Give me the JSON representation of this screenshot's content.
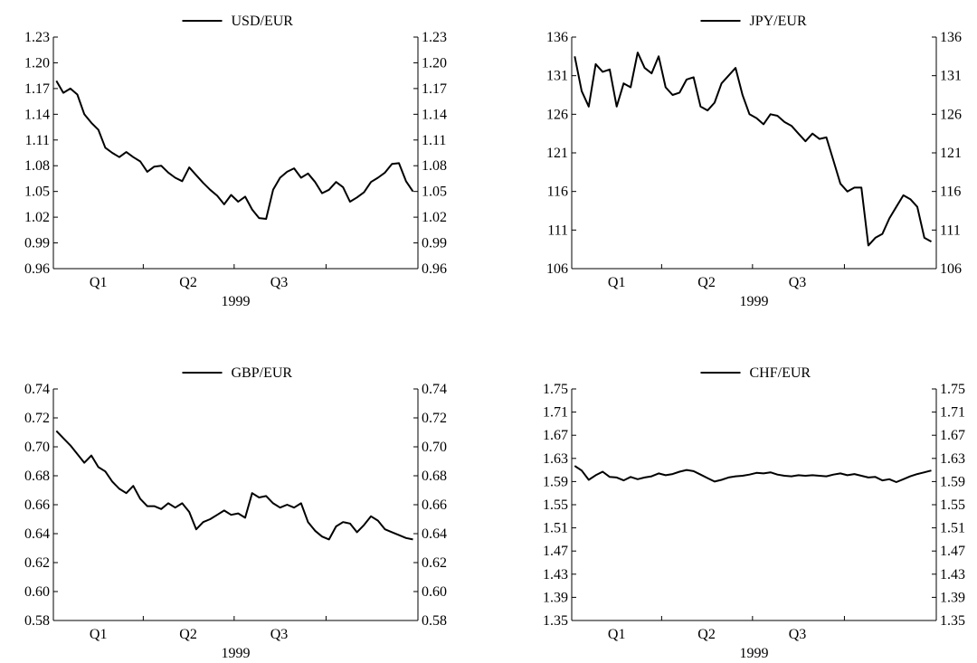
{
  "chart_data": [
    {
      "type": "line",
      "title": "",
      "series": [
        {
          "name": "USD/EUR",
          "color": "#000000",
          "x": [
            "1999-01-04",
            "1999-01-11",
            "1999-01-18",
            "1999-01-25",
            "1999-02-01",
            "1999-02-08",
            "1999-02-15",
            "1999-02-22",
            "1999-03-01",
            "1999-03-08",
            "1999-03-15",
            "1999-03-22",
            "1999-03-29",
            "1999-04-05",
            "1999-04-12",
            "1999-04-19",
            "1999-04-26",
            "1999-05-03",
            "1999-05-10",
            "1999-05-17",
            "1999-05-24",
            "1999-05-31",
            "1999-06-07",
            "1999-06-14",
            "1999-06-21",
            "1999-06-28",
            "1999-07-05",
            "1999-07-12",
            "1999-07-19",
            "1999-07-26",
            "1999-08-02",
            "1999-08-09",
            "1999-08-16",
            "1999-08-23",
            "1999-08-30",
            "1999-09-06",
            "1999-09-13",
            "1999-09-20",
            "1999-09-27",
            "1999-10-04",
            "1999-10-11",
            "1999-10-18",
            "1999-10-25",
            "1999-11-01",
            "1999-11-08",
            "1999-11-15",
            "1999-11-22",
            "1999-11-29",
            "1999-12-06",
            "1999-12-13",
            "1999-12-20",
            "1999-12-27"
          ],
          "values": [
            1.179,
            1.165,
            1.17,
            1.163,
            1.14,
            1.13,
            1.122,
            1.101,
            1.095,
            1.09,
            1.096,
            1.09,
            1.085,
            1.073,
            1.079,
            1.08,
            1.072,
            1.066,
            1.062,
            1.078,
            1.069,
            1.06,
            1.052,
            1.045,
            1.035,
            1.046,
            1.038,
            1.044,
            1.029,
            1.019,
            1.018,
            1.052,
            1.066,
            1.073,
            1.077,
            1.066,
            1.071,
            1.061,
            1.048,
            1.052,
            1.061,
            1.055,
            1.038,
            1.043,
            1.049,
            1.061,
            1.066,
            1.072,
            1.082,
            1.083,
            1.062,
            1.05
          ]
        }
      ],
      "xaxis": {
        "tick_labels": [
          "Q1",
          "Q2",
          "Q3"
        ],
        "label": "1999",
        "range": [
          "1999-01-01",
          "1999-12-31"
        ]
      },
      "yaxis": {
        "ticks": [
          "0.96",
          "0.99",
          "1.02",
          "1.05",
          "1.08",
          "1.11",
          "1.14",
          "1.17",
          "1.20",
          "1.23"
        ],
        "ylim": [
          0.96,
          1.23
        ]
      },
      "grid": false,
      "legend": "top-center"
    },
    {
      "type": "line",
      "title": "",
      "series": [
        {
          "name": "JPY/EUR",
          "color": "#000000",
          "x": [
            "1999-01-04",
            "1999-01-11",
            "1999-01-18",
            "1999-01-25",
            "1999-02-01",
            "1999-02-08",
            "1999-02-15",
            "1999-02-22",
            "1999-03-01",
            "1999-03-08",
            "1999-03-15",
            "1999-03-22",
            "1999-03-29",
            "1999-04-05",
            "1999-04-12",
            "1999-04-19",
            "1999-04-26",
            "1999-05-03",
            "1999-05-10",
            "1999-05-17",
            "1999-05-24",
            "1999-05-31",
            "1999-06-07",
            "1999-06-14",
            "1999-06-21",
            "1999-06-28",
            "1999-07-05",
            "1999-07-12",
            "1999-07-19",
            "1999-07-26",
            "1999-08-02",
            "1999-08-09",
            "1999-08-16",
            "1999-08-23",
            "1999-08-30",
            "1999-09-06",
            "1999-09-13",
            "1999-09-20",
            "1999-09-27",
            "1999-10-04",
            "1999-10-11",
            "1999-10-18",
            "1999-10-25",
            "1999-11-01",
            "1999-11-08",
            "1999-11-15",
            "1999-11-22",
            "1999-11-29",
            "1999-12-06",
            "1999-12-13",
            "1999-12-20",
            "1999-12-27"
          ],
          "values": [
            133.5,
            129,
            127,
            132.5,
            131.5,
            131.8,
            127,
            130,
            129.5,
            134,
            132,
            131.3,
            133.5,
            129.5,
            128.5,
            128.8,
            130.5,
            130.8,
            127,
            126.5,
            127.5,
            130,
            131,
            132,
            128.5,
            126,
            125.5,
            124.7,
            126,
            125.8,
            125,
            124.5,
            123.5,
            122.5,
            123.5,
            122.8,
            123,
            120,
            117,
            116,
            116.5,
            116.5,
            109,
            110,
            110.5,
            112.5,
            114,
            115.5,
            115,
            114,
            110,
            109.5
          ]
        }
      ],
      "xaxis": {
        "tick_labels": [
          "Q1",
          "Q2",
          "Q3"
        ],
        "label": "1999",
        "range": [
          "1999-01-01",
          "1999-12-31"
        ]
      },
      "yaxis": {
        "ticks": [
          "106",
          "111",
          "116",
          "121",
          "126",
          "131",
          "136"
        ],
        "ylim": [
          106,
          136
        ]
      },
      "grid": false,
      "legend": "top-center"
    },
    {
      "type": "line",
      "title": "",
      "series": [
        {
          "name": "GBP/EUR",
          "color": "#000000",
          "x": [
            "1999-01-04",
            "1999-01-11",
            "1999-01-18",
            "1999-01-25",
            "1999-02-01",
            "1999-02-08",
            "1999-02-15",
            "1999-02-22",
            "1999-03-01",
            "1999-03-08",
            "1999-03-15",
            "1999-03-22",
            "1999-03-29",
            "1999-04-05",
            "1999-04-12",
            "1999-04-19",
            "1999-04-26",
            "1999-05-03",
            "1999-05-10",
            "1999-05-17",
            "1999-05-24",
            "1999-05-31",
            "1999-06-07",
            "1999-06-14",
            "1999-06-21",
            "1999-06-28",
            "1999-07-05",
            "1999-07-12",
            "1999-07-19",
            "1999-07-26",
            "1999-08-02",
            "1999-08-09",
            "1999-08-16",
            "1999-08-23",
            "1999-08-30",
            "1999-09-06",
            "1999-09-13",
            "1999-09-20",
            "1999-09-27",
            "1999-10-04",
            "1999-10-11",
            "1999-10-18",
            "1999-10-25",
            "1999-11-01",
            "1999-11-08",
            "1999-11-15",
            "1999-11-22",
            "1999-11-29",
            "1999-12-06",
            "1999-12-13",
            "1999-12-20",
            "1999-12-27"
          ],
          "values": [
            0.711,
            0.706,
            0.701,
            0.695,
            0.689,
            0.694,
            0.686,
            0.683,
            0.676,
            0.671,
            0.668,
            0.673,
            0.664,
            0.659,
            0.659,
            0.657,
            0.661,
            0.658,
            0.661,
            0.655,
            0.643,
            0.648,
            0.65,
            0.653,
            0.656,
            0.653,
            0.654,
            0.651,
            0.668,
            0.665,
            0.666,
            0.661,
            0.658,
            0.66,
            0.658,
            0.661,
            0.648,
            0.642,
            0.638,
            0.636,
            0.645,
            0.648,
            0.647,
            0.641,
            0.646,
            0.652,
            0.649,
            0.643,
            0.641,
            0.639,
            0.637,
            0.636
          ]
        }
      ],
      "xaxis": {
        "tick_labels": [
          "Q1",
          "Q2",
          "Q3"
        ],
        "label": "1999",
        "range": [
          "1999-01-01",
          "1999-12-31"
        ]
      },
      "yaxis": {
        "ticks": [
          "0.58",
          "0.60",
          "0.62",
          "0.64",
          "0.66",
          "0.68",
          "0.70",
          "0.72",
          "0.74"
        ],
        "ylim": [
          0.58,
          0.74
        ]
      },
      "grid": false,
      "legend": "top-center"
    },
    {
      "type": "line",
      "title": "",
      "series": [
        {
          "name": "CHF/EUR",
          "color": "#000000",
          "x": [
            "1999-01-04",
            "1999-01-11",
            "1999-01-18",
            "1999-01-25",
            "1999-02-01",
            "1999-02-08",
            "1999-02-15",
            "1999-02-22",
            "1999-03-01",
            "1999-03-08",
            "1999-03-15",
            "1999-03-22",
            "1999-03-29",
            "1999-04-05",
            "1999-04-12",
            "1999-04-19",
            "1999-04-26",
            "1999-05-03",
            "1999-05-10",
            "1999-05-17",
            "1999-05-24",
            "1999-05-31",
            "1999-06-07",
            "1999-06-14",
            "1999-06-21",
            "1999-06-28",
            "1999-07-05",
            "1999-07-12",
            "1999-07-19",
            "1999-07-26",
            "1999-08-02",
            "1999-08-09",
            "1999-08-16",
            "1999-08-23",
            "1999-08-30",
            "1999-09-06",
            "1999-09-13",
            "1999-09-20",
            "1999-09-27",
            "1999-10-04",
            "1999-10-11",
            "1999-10-18",
            "1999-10-25",
            "1999-11-01",
            "1999-11-08",
            "1999-11-15",
            "1999-11-22",
            "1999-11-29",
            "1999-12-06",
            "1999-12-13",
            "1999-12-20",
            "1999-12-27"
          ],
          "values": [
            1.617,
            1.609,
            1.593,
            1.601,
            1.607,
            1.598,
            1.597,
            1.592,
            1.598,
            1.594,
            1.597,
            1.599,
            1.604,
            1.601,
            1.603,
            1.607,
            1.61,
            1.608,
            1.602,
            1.596,
            1.59,
            1.593,
            1.597,
            1.599,
            1.6,
            1.602,
            1.605,
            1.604,
            1.606,
            1.602,
            1.6,
            1.599,
            1.601,
            1.6,
            1.601,
            1.6,
            1.599,
            1.602,
            1.604,
            1.601,
            1.603,
            1.6,
            1.597,
            1.598,
            1.592,
            1.594,
            1.589,
            1.594,
            1.599,
            1.603,
            1.606,
            1.609
          ]
        }
      ],
      "xaxis": {
        "tick_labels": [
          "Q1",
          "Q2",
          "Q3"
        ],
        "label": "1999",
        "range": [
          "1999-01-01",
          "1999-12-31"
        ]
      },
      "yaxis": {
        "ticks": [
          "1.35",
          "1.39",
          "1.43",
          "1.47",
          "1.51",
          "1.55",
          "1.59",
          "1.63",
          "1.67",
          "1.71",
          "1.75"
        ],
        "ylim": [
          1.35,
          1.75
        ]
      },
      "grid": false,
      "legend": "top-center"
    }
  ]
}
